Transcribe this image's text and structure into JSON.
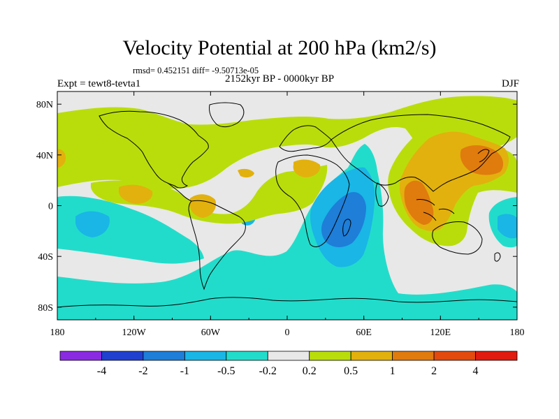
{
  "title": "Velocity Potential at 200 hPa (km2/s)",
  "stats": "rmsd= 0.452151 diff= -9.50713e-05",
  "experiment": "Expt = tewt8-tevta1",
  "period": "2152kyr BP - 0000kyr BP",
  "season": "DJF",
  "axes": {
    "x_ticks": [
      {
        "lon": -180,
        "label": "180"
      },
      {
        "lon": -120,
        "label": "120W"
      },
      {
        "lon": -60,
        "label": "60W"
      },
      {
        "lon": 0,
        "label": "0"
      },
      {
        "lon": 60,
        "label": "60E"
      },
      {
        "lon": 120,
        "label": "120E"
      },
      {
        "lon": 180,
        "label": "180"
      }
    ],
    "y_ticks": [
      {
        "lat": 80,
        "label": "80N"
      },
      {
        "lat": 40,
        "label": "40N"
      },
      {
        "lat": 0,
        "label": "0"
      },
      {
        "lat": -40,
        "label": "40S"
      },
      {
        "lat": -80,
        "label": "80S"
      }
    ]
  },
  "colorbar": {
    "labels": [
      "-4",
      "-2",
      "-1",
      "-0.5",
      "-0.2",
      "0.2",
      "0.5",
      "1",
      "2",
      "4"
    ],
    "colors": [
      "#8a2be2",
      "#2040d0",
      "#1e7ed8",
      "#19b6e6",
      "#22dccb",
      "#e8e8e8",
      "#b9dd0b",
      "#e2b10d",
      "#e07b0e",
      "#e24a0e",
      "#e01b0f"
    ]
  },
  "colors": {
    "land_outline": "#000000",
    "background_field": "#e8e8e8"
  }
}
